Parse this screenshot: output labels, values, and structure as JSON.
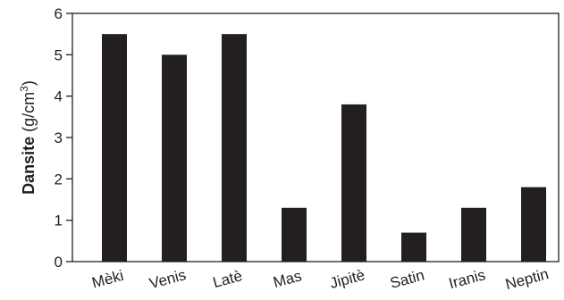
{
  "chart_data": {
    "type": "bar",
    "categories": [
      "Mèki",
      "Venis",
      "Latè",
      "Mas",
      "Jipitè",
      "Satin",
      "Iranis",
      "Neptin"
    ],
    "values": [
      5.5,
      5.0,
      5.5,
      1.3,
      3.8,
      0.7,
      1.3,
      1.8
    ],
    "title": "",
    "xlabel": "",
    "ylabel_bold": "Dansite",
    "ylabel_unit": "(g/cm",
    "ylabel_sup": "3",
    "ylabel_close": ")",
    "ylim": [
      0,
      6
    ],
    "yticks": [
      "0",
      "1",
      "2",
      "3",
      "4",
      "5",
      "6"
    ],
    "grid": false,
    "bar_color": "#231f20"
  }
}
